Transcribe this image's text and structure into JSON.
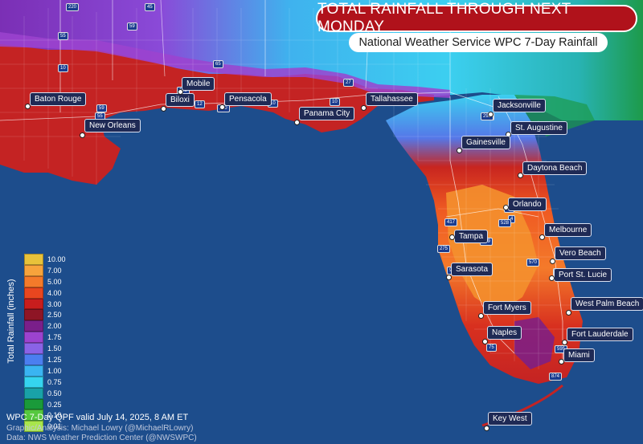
{
  "title": "TOTAL RAINFALL THROUGH NEXT MONDAY",
  "subtitle": "National Weather Service WPC 7-Day Rainfall",
  "cities": [
    {
      "name": "Baton Rouge"
    },
    {
      "name": "New Orleans"
    },
    {
      "name": "Biloxi"
    },
    {
      "name": "Mobile"
    },
    {
      "name": "Pensacola"
    },
    {
      "name": "Panama City"
    },
    {
      "name": "Tallahassee"
    },
    {
      "name": "Jacksonville"
    },
    {
      "name": "St. Augustine"
    },
    {
      "name": "Gainesville"
    },
    {
      "name": "Daytona Beach"
    },
    {
      "name": "Orlando"
    },
    {
      "name": "Tampa"
    },
    {
      "name": "Melbourne"
    },
    {
      "name": "Vero Beach"
    },
    {
      "name": "Sarasota"
    },
    {
      "name": "Port St. Lucie"
    },
    {
      "name": "West Palm Beach"
    },
    {
      "name": "Fort Myers"
    },
    {
      "name": "Naples"
    },
    {
      "name": "Fort Lauderdale"
    },
    {
      "name": "Miami"
    },
    {
      "name": "Key West"
    }
  ],
  "interstates": [
    "220",
    "45",
    "59",
    "55",
    "10",
    "65",
    "27",
    "75",
    "295",
    "95",
    "4",
    "528",
    "417",
    "589",
    "570",
    "275",
    "91",
    "95",
    "75",
    "595",
    "874",
    "12",
    "10",
    "165",
    "110",
    "10",
    "59",
    "55"
  ],
  "legend": {
    "axis_label": "Total Rainfall (inches)",
    "bins": [
      {
        "label": "10.00",
        "color": "#e8c23a"
      },
      {
        "label": "7.00",
        "color": "#f7a33c"
      },
      {
        "label": "5.00",
        "color": "#f47a2a"
      },
      {
        "label": "4.00",
        "color": "#e8461f"
      },
      {
        "label": "3.00",
        "color": "#c81d1d"
      },
      {
        "label": "2.50",
        "color": "#8e1525"
      },
      {
        "label": "2.00",
        "color": "#7a1f8a"
      },
      {
        "label": "1.75",
        "color": "#9c43cf"
      },
      {
        "label": "1.50",
        "color": "#8a63e6"
      },
      {
        "label": "1.25",
        "color": "#4b7ef0"
      },
      {
        "label": "1.00",
        "color": "#3ab4f2"
      },
      {
        "label": "0.75",
        "color": "#35d4f0"
      },
      {
        "label": "0.50",
        "color": "#19a2a8"
      },
      {
        "label": "0.25",
        "color": "#1a9a3a"
      },
      {
        "label": "0.10",
        "color": "#55c83e"
      },
      {
        "label": "0.01",
        "color": "#a8e64a"
      }
    ]
  },
  "footer": {
    "valid": "WPC 7-Day QPF valid July 14, 2025, 8 AM ET",
    "credit": "Graphic/Analysis: Michael Lowry (@MichaelRLowry)",
    "data": "Data: NWS Weather Prediction Center (@NWSWPC)"
  }
}
